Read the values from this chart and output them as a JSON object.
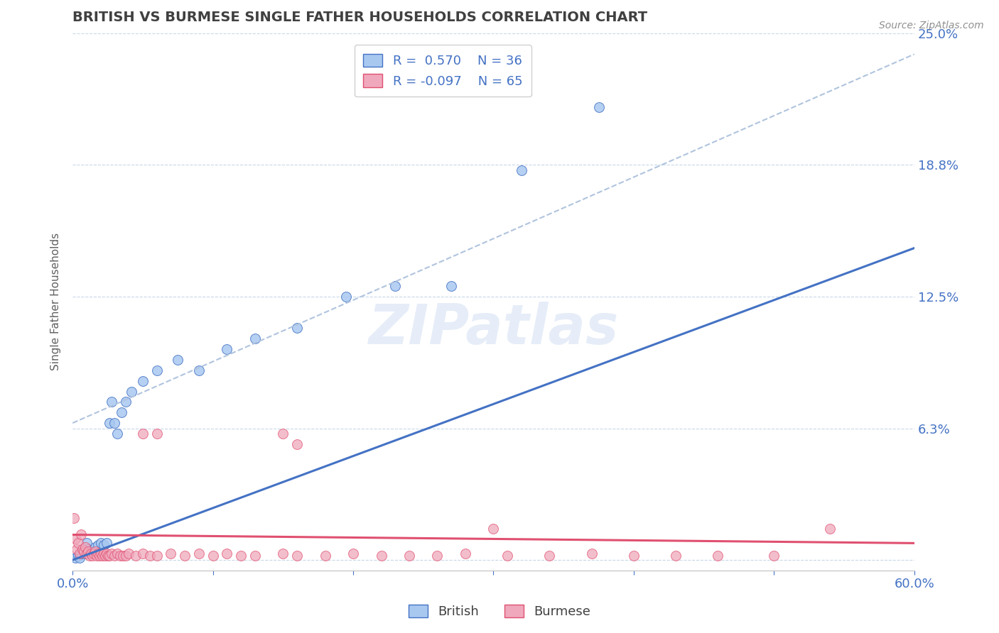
{
  "title": "BRITISH VS BURMESE SINGLE FATHER HOUSEHOLDS CORRELATION CHART",
  "source": "Source: ZipAtlas.com",
  "ylabel": "Single Father Households",
  "xlim": [
    0.0,
    0.6
  ],
  "ylim": [
    -0.005,
    0.25
  ],
  "yticks": [
    0.0,
    0.0625,
    0.125,
    0.1875,
    0.25
  ],
  "ytick_labels_right": [
    "",
    "6.3%",
    "12.5%",
    "18.8%",
    "25.0%"
  ],
  "british_color": "#a8c8f0",
  "burmese_color": "#f0a8bc",
  "british_line_color": "#4472c4",
  "burmese_line_color": "#e05070",
  "conf_line_color": "#b0c4de",
  "british_R": 0.57,
  "british_N": 36,
  "burmese_R": -0.097,
  "burmese_N": 65,
  "watermark": "ZIPatlas",
  "british_scatter_x": [
    0.002,
    0.004,
    0.005,
    0.006,
    0.007,
    0.008,
    0.009,
    0.01,
    0.011,
    0.012,
    0.013,
    0.015,
    0.016,
    0.018,
    0.02,
    0.022,
    0.024,
    0.026,
    0.028,
    0.03,
    0.032,
    0.035,
    0.038,
    0.042,
    0.05,
    0.06,
    0.075,
    0.09,
    0.11,
    0.13,
    0.16,
    0.195,
    0.23,
    0.27,
    0.32,
    0.375
  ],
  "british_scatter_y": [
    0.001,
    0.002,
    0.001,
    0.003,
    0.005,
    0.004,
    0.003,
    0.008,
    0.005,
    0.004,
    0.003,
    0.004,
    0.006,
    0.007,
    0.008,
    0.007,
    0.008,
    0.065,
    0.075,
    0.065,
    0.06,
    0.07,
    0.075,
    0.08,
    0.085,
    0.09,
    0.095,
    0.09,
    0.1,
    0.105,
    0.11,
    0.125,
    0.13,
    0.13,
    0.185,
    0.215
  ],
  "burmese_scatter_x": [
    0.001,
    0.002,
    0.003,
    0.004,
    0.005,
    0.006,
    0.007,
    0.008,
    0.009,
    0.01,
    0.011,
    0.012,
    0.013,
    0.014,
    0.015,
    0.016,
    0.017,
    0.018,
    0.019,
    0.02,
    0.021,
    0.022,
    0.023,
    0.024,
    0.025,
    0.026,
    0.028,
    0.03,
    0.032,
    0.034,
    0.036,
    0.038,
    0.04,
    0.045,
    0.05,
    0.055,
    0.06,
    0.07,
    0.08,
    0.09,
    0.1,
    0.11,
    0.12,
    0.13,
    0.15,
    0.16,
    0.18,
    0.2,
    0.22,
    0.24,
    0.26,
    0.28,
    0.31,
    0.34,
    0.37,
    0.4,
    0.43,
    0.46,
    0.5,
    0.54,
    0.05,
    0.06,
    0.15,
    0.16,
    0.3
  ],
  "burmese_scatter_y": [
    0.02,
    0.01,
    0.005,
    0.008,
    0.003,
    0.012,
    0.005,
    0.004,
    0.006,
    0.003,
    0.004,
    0.002,
    0.003,
    0.002,
    0.003,
    0.004,
    0.002,
    0.003,
    0.002,
    0.003,
    0.002,
    0.003,
    0.002,
    0.003,
    0.002,
    0.002,
    0.003,
    0.002,
    0.003,
    0.002,
    0.002,
    0.002,
    0.003,
    0.002,
    0.003,
    0.002,
    0.002,
    0.003,
    0.002,
    0.003,
    0.002,
    0.003,
    0.002,
    0.002,
    0.003,
    0.002,
    0.002,
    0.003,
    0.002,
    0.002,
    0.002,
    0.003,
    0.002,
    0.002,
    0.003,
    0.002,
    0.002,
    0.002,
    0.002,
    0.015,
    0.06,
    0.06,
    0.06,
    0.055,
    0.015
  ]
}
